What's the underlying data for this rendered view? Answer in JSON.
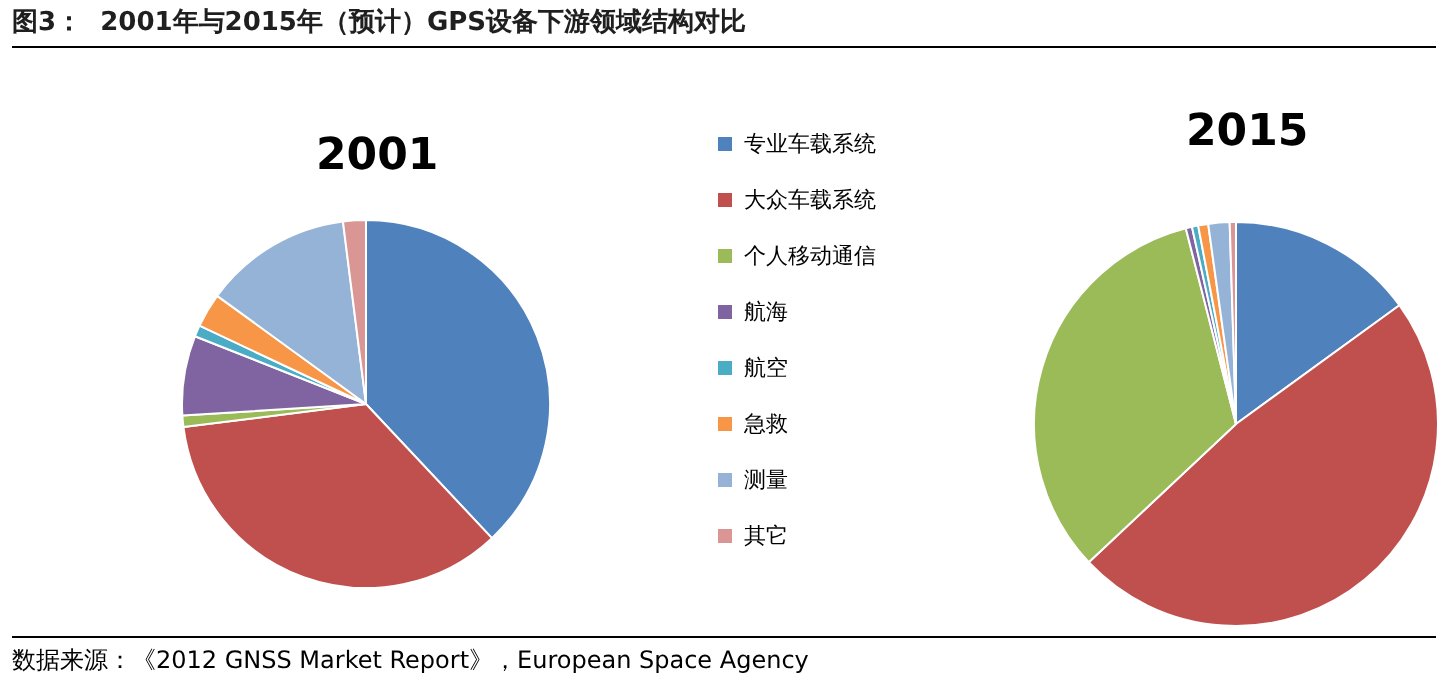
{
  "chart_data": [
    {
      "type": "other",
      "title": "图3：  2001年与2015年（预计）GPS设备下游领域结构对比",
      "annotations": [
        "数据来源：《2012 GNSS Market Report》，European Space Agency"
      ]
    },
    {
      "type": "pie",
      "legend": "right",
      "categories": [
        "专业车载系统",
        "大众车载系统",
        "个人移动通信",
        "航海",
        "航空",
        "急救",
        "测量",
        "其它"
      ],
      "colors": [
        "#4f81bd",
        "#c0504d",
        "#9bbb59",
        "#8064a2",
        "#4bacc6",
        "#f79646",
        "#95b3d7",
        "#d99694"
      ],
      "series": [
        {
          "name": "2001",
          "values": [
            38,
            35,
            1,
            7,
            1,
            3,
            13,
            2
          ]
        },
        {
          "name": "2015",
          "values": [
            15,
            48,
            33,
            0.5,
            0.5,
            0.8,
            1.7,
            0.5
          ]
        }
      ]
    }
  ]
}
